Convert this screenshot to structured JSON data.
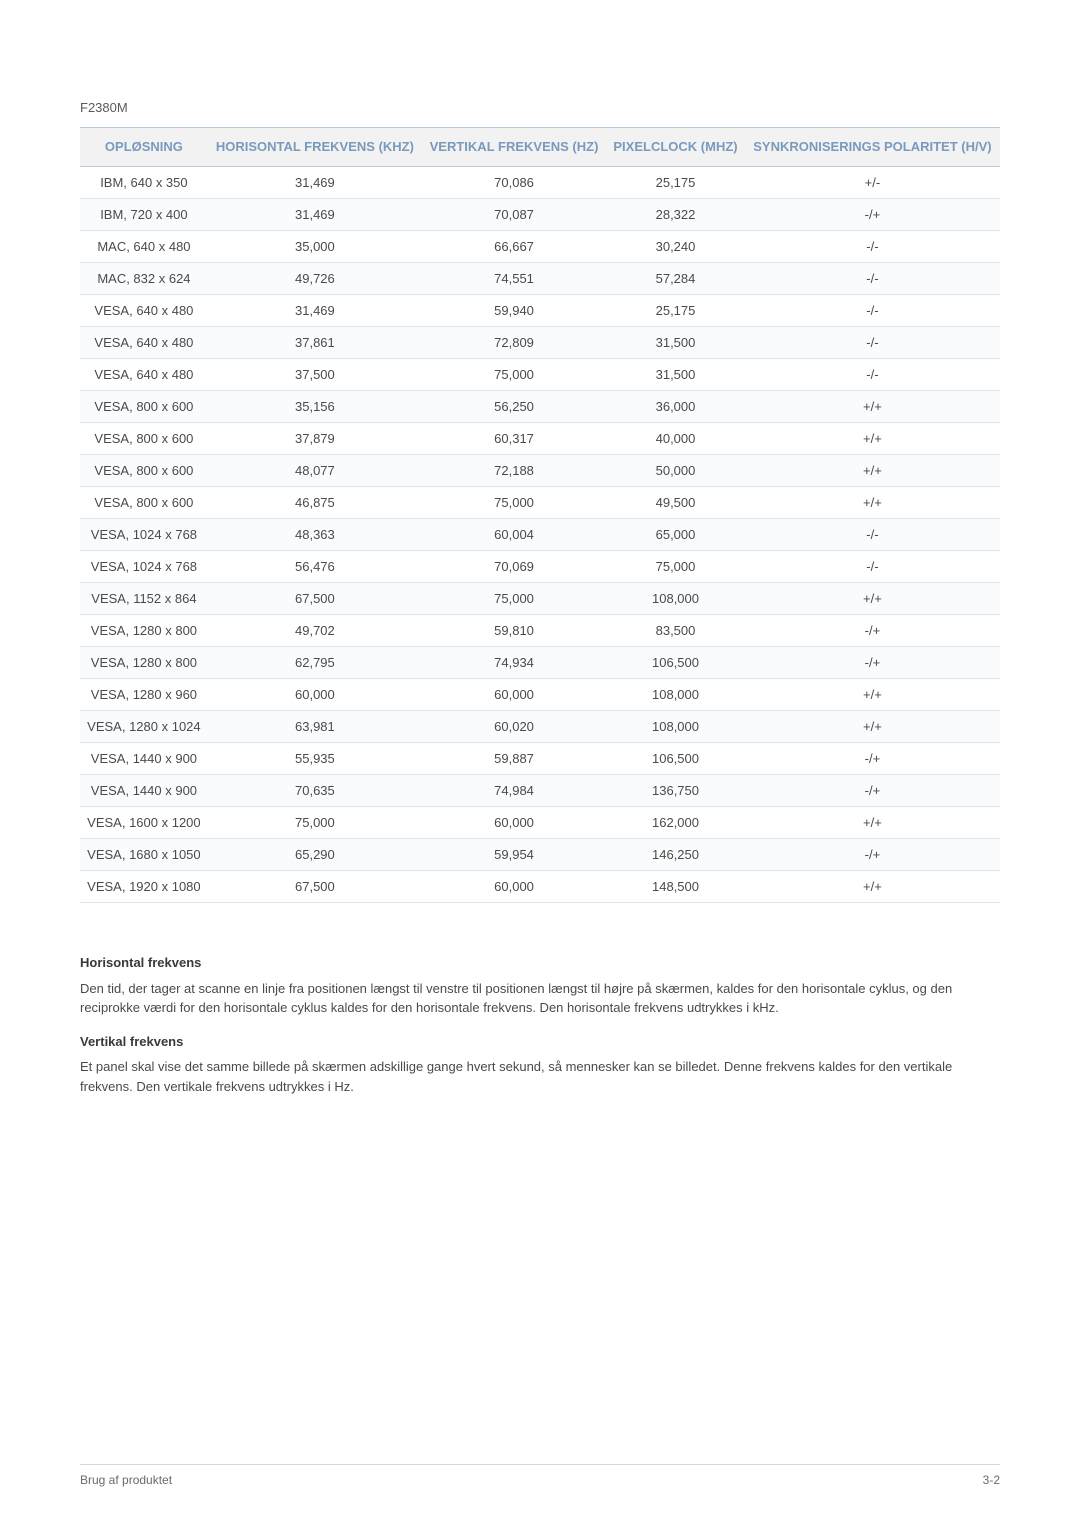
{
  "model": "F2380M",
  "table": {
    "columns": [
      "OPLØSNING",
      "HORISONTAL FREKVENS (KHZ)",
      "VERTIKAL FREKVENS (HZ)",
      "PIXELCLOCK (MHZ)",
      "SYNKRONISERINGS POLARITET (H/V)"
    ],
    "header_bg": "#f2f2f2",
    "header_text_color": "#799abf",
    "border_color": "#b9c9da",
    "row_border_color": "#dbe3ec",
    "cell_text_color": "#4a4a4a",
    "font_size_pt": 10,
    "rows": [
      [
        "IBM, 640 x 350",
        "31,469",
        "70,086",
        "25,175",
        "+/-"
      ],
      [
        "IBM, 720 x 400",
        "31,469",
        "70,087",
        "28,322",
        "-/+"
      ],
      [
        "MAC, 640 x 480",
        "35,000",
        "66,667",
        "30,240",
        "-/-"
      ],
      [
        "MAC, 832 x 624",
        "49,726",
        "74,551",
        "57,284",
        "-/-"
      ],
      [
        "VESA, 640 x 480",
        "31,469",
        "59,940",
        "25,175",
        "-/-"
      ],
      [
        "VESA, 640 x 480",
        "37,861",
        "72,809",
        "31,500",
        "-/-"
      ],
      [
        "VESA, 640 x 480",
        "37,500",
        "75,000",
        "31,500",
        "-/-"
      ],
      [
        "VESA, 800 x 600",
        "35,156",
        "56,250",
        "36,000",
        "+/+"
      ],
      [
        "VESA, 800 x 600",
        "37,879",
        "60,317",
        "40,000",
        "+/+"
      ],
      [
        "VESA, 800 x 600",
        "48,077",
        "72,188",
        "50,000",
        "+/+"
      ],
      [
        "VESA, 800 x 600",
        "46,875",
        "75,000",
        "49,500",
        "+/+"
      ],
      [
        "VESA, 1024 x 768",
        "48,363",
        "60,004",
        "65,000",
        "-/-"
      ],
      [
        "VESA, 1024 x 768",
        "56,476",
        "70,069",
        "75,000",
        "-/-"
      ],
      [
        "VESA, 1152 x 864",
        "67,500",
        "75,000",
        "108,000",
        "+/+"
      ],
      [
        "VESA, 1280 x 800",
        "49,702",
        "59,810",
        "83,500",
        "-/+"
      ],
      [
        "VESA, 1280 x 800",
        "62,795",
        "74,934",
        "106,500",
        "-/+"
      ],
      [
        "VESA, 1280 x 960",
        "60,000",
        "60,000",
        "108,000",
        "+/+"
      ],
      [
        "VESA, 1280 x 1024",
        "63,981",
        "60,020",
        "108,000",
        "+/+"
      ],
      [
        "VESA, 1440 x 900",
        "55,935",
        "59,887",
        "106,500",
        "-/+"
      ],
      [
        "VESA, 1440 x 900",
        "70,635",
        "74,984",
        "136,750",
        "-/+"
      ],
      [
        "VESA, 1600 x 1200",
        "75,000",
        "60,000",
        "162,000",
        "+/+"
      ],
      [
        "VESA, 1680 x 1050",
        "65,290",
        "59,954",
        "146,250",
        "-/+"
      ],
      [
        "VESA, 1920 x 1080",
        "67,500",
        "60,000",
        "148,500",
        "+/+"
      ]
    ]
  },
  "sections": {
    "horisontal": {
      "title": "Horisontal frekvens",
      "body": "Den tid, der tager at scanne en linje fra positionen længst til venstre til positionen længst til højre på skærmen, kaldes for den horisontale cyklus, og den reciprokke værdi for den horisontale cyklus kaldes for den horisontale frekvens. Den horisontale frekvens udtrykkes i kHz."
    },
    "vertikal": {
      "title": "Vertikal frekvens",
      "body": "Et panel skal vise det samme billede på skærmen adskillige gange hvert sekund, så mennesker kan se billedet. Denne frekvens kaldes for den vertikale frekvens. Den vertikale frekvens udtrykkes i Hz."
    }
  },
  "footer": {
    "left": "Brug af produktet",
    "right": "3-2"
  }
}
